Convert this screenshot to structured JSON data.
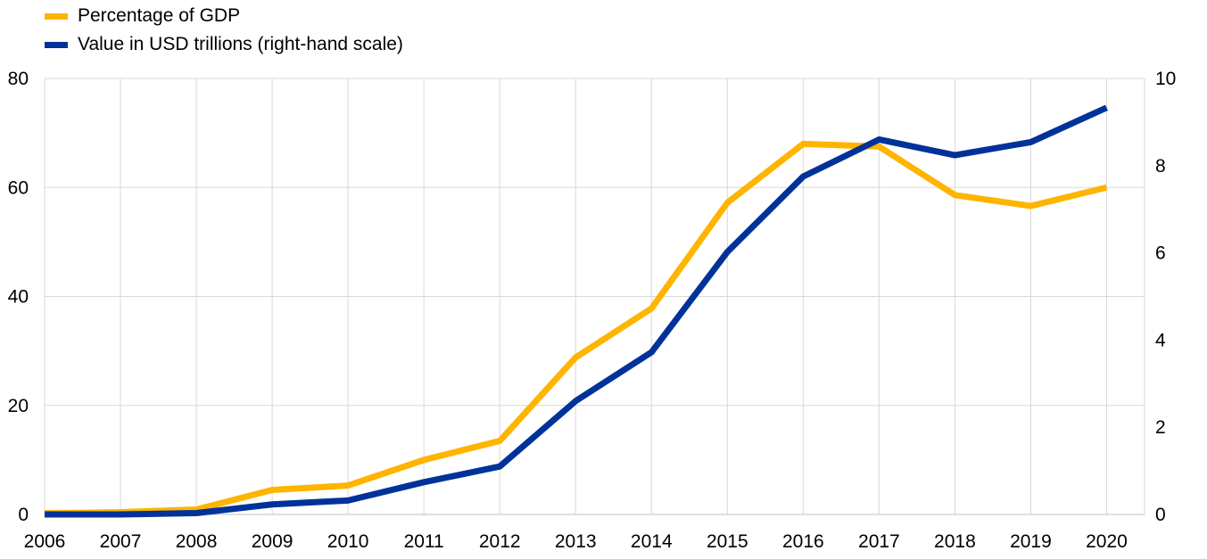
{
  "chart_data": {
    "type": "line",
    "title": "",
    "xlabel": "",
    "ylabel": "",
    "y2label": "",
    "categories": [
      "2006",
      "2007",
      "2008",
      "2009",
      "2010",
      "2011",
      "2012",
      "2013",
      "2014",
      "2015",
      "2016",
      "2017",
      "2018",
      "2019",
      "2020"
    ],
    "ylim": [
      0,
      80
    ],
    "yticks": [
      0,
      20,
      40,
      60,
      80
    ],
    "y2lim": [
      0,
      10
    ],
    "y2ticks": [
      0,
      2,
      4,
      6,
      8,
      10
    ],
    "grid": true,
    "legend_position": "top-left",
    "series": [
      {
        "name": "Percentage of GDP",
        "axis": "left",
        "color": "#FFB400",
        "values": [
          0.2,
          0.4,
          0.9,
          4.5,
          5.3,
          10.0,
          13.5,
          28.8,
          37.8,
          57.2,
          68.0,
          67.5,
          58.6,
          56.6,
          60.0
        ]
      },
      {
        "name": "Value in USD trillions (right-hand scale)",
        "axis": "right",
        "color": "#003299",
        "values": [
          0.0,
          0.0,
          0.03,
          0.23,
          0.32,
          0.74,
          1.1,
          2.6,
          3.72,
          6.02,
          7.75,
          8.6,
          8.24,
          8.54,
          9.33
        ]
      }
    ]
  }
}
